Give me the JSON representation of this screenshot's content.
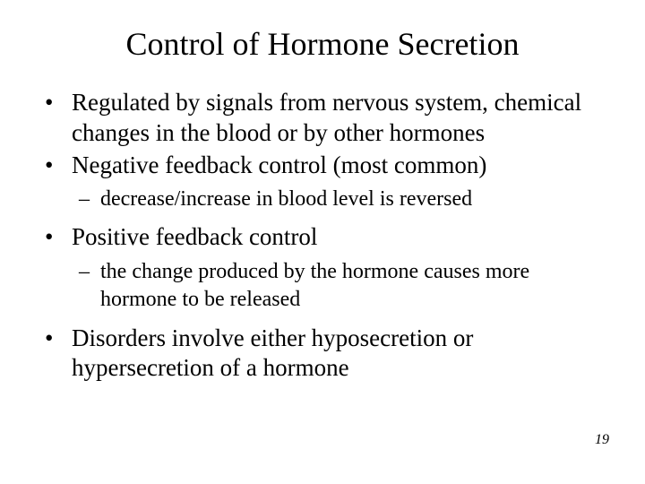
{
  "title": "Control of Hormone Secretion",
  "bullets": {
    "b1": "Regulated by signals from nervous system, chemical changes in the blood or by other hormones",
    "b2": "Negative feedback control (most common)",
    "b2_sub": "decrease/increase in blood level is reversed",
    "b3": "Positive feedback control",
    "b3_sub": "the change produced by the hormone causes more hormone to be released",
    "b4": "Disorders involve either hyposecretion or hypersecretion of a hormone"
  },
  "page_number": "19",
  "style": {
    "background_color": "#ffffff",
    "text_color": "#000000",
    "title_fontsize": 36,
    "bullet_fontsize": 27,
    "sub_bullet_fontsize": 24,
    "page_number_fontsize": 16,
    "font_family": "Times New Roman"
  }
}
